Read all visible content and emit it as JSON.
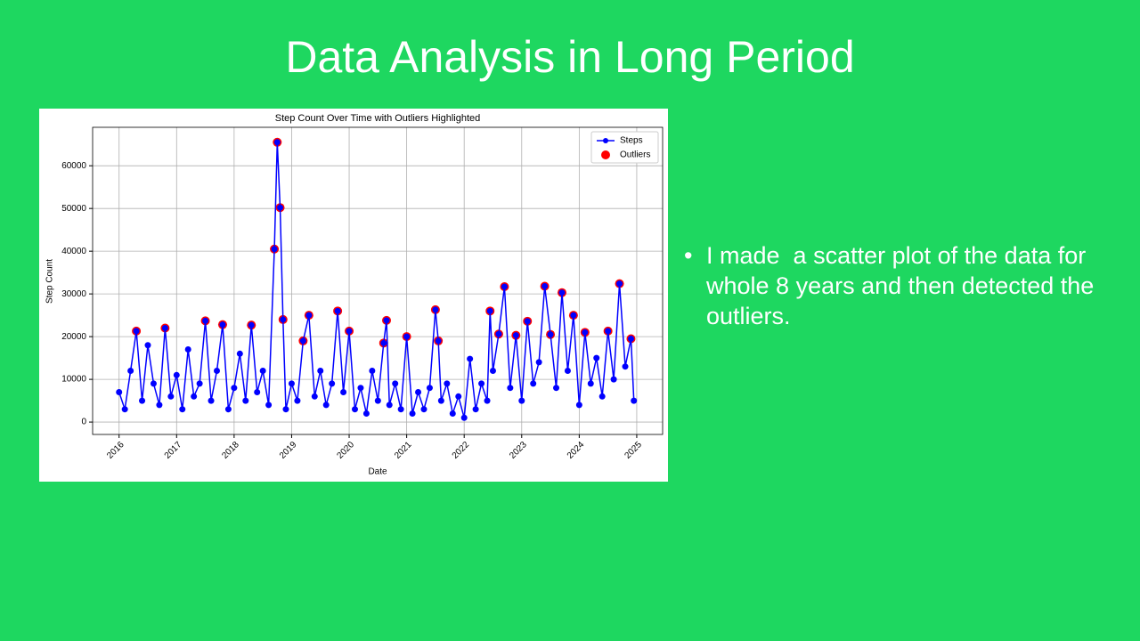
{
  "slide": {
    "title": "Data Analysis in Long Period",
    "bullets": [
      "I made  a scatter plot of the data for whole 8 years and then detected the outliers."
    ]
  },
  "chart_data": {
    "type": "line",
    "title": "Step Count Over Time with Outliers Highlighted",
    "x_label": "Date",
    "y_label": "Step Count",
    "xlim": [
      2015.54,
      2025.45
    ],
    "xticks": [
      2016,
      2017,
      2018,
      2019,
      2020,
      2021,
      2022,
      2023,
      2024,
      2025
    ],
    "ylim": [
      -2900,
      69000
    ],
    "yticks": [
      0,
      10000,
      20000,
      30000,
      40000,
      50000,
      60000
    ],
    "grid": true,
    "legend": "upper right",
    "series": [
      {
        "name": "Steps",
        "color": "#0000ff",
        "mode": "line-markers",
        "x": [
          2016.0,
          2016.1,
          2016.2,
          2016.3,
          2016.4,
          2016.5,
          2016.6,
          2016.7,
          2016.8,
          2016.9,
          2017.0,
          2017.1,
          2017.2,
          2017.3,
          2017.4,
          2017.5,
          2017.6,
          2017.7,
          2017.8,
          2017.9,
          2018.0,
          2018.1,
          2018.2,
          2018.3,
          2018.4,
          2018.5,
          2018.6,
          2018.7,
          2018.75,
          2018.8,
          2018.85,
          2018.9,
          2019.0,
          2019.1,
          2019.2,
          2019.3,
          2019.4,
          2019.5,
          2019.6,
          2019.7,
          2019.8,
          2019.9,
          2020.0,
          2020.1,
          2020.2,
          2020.3,
          2020.4,
          2020.5,
          2020.6,
          2020.65,
          2020.7,
          2020.8,
          2020.9,
          2021.0,
          2021.1,
          2021.2,
          2021.3,
          2021.4,
          2021.5,
          2021.55,
          2021.6,
          2021.7,
          2021.8,
          2021.9,
          2022.0,
          2022.1,
          2022.2,
          2022.3,
          2022.4,
          2022.45,
          2022.5,
          2022.6,
          2022.7,
          2022.8,
          2022.9,
          2023.0,
          2023.1,
          2023.2,
          2023.3,
          2023.4,
          2023.5,
          2023.6,
          2023.7,
          2023.8,
          2023.9,
          2024.0,
          2024.1,
          2024.2,
          2024.3,
          2024.4,
          2024.5,
          2024.6,
          2024.7,
          2024.8,
          2024.9,
          2024.95
        ],
        "values": [
          7000,
          3000,
          12000,
          21300,
          5000,
          18000,
          9000,
          4000,
          22000,
          6000,
          11000,
          3000,
          17000,
          6000,
          9000,
          23700,
          5000,
          12000,
          22800,
          3000,
          8000,
          16000,
          5000,
          22700,
          7000,
          12000,
          4000,
          40500,
          65500,
          50200,
          24000,
          3000,
          9000,
          5000,
          19000,
          25000,
          6000,
          12000,
          4000,
          9000,
          26000,
          7000,
          21300,
          3000,
          8000,
          2000,
          12000,
          5000,
          18500,
          23800,
          4000,
          9000,
          3000,
          20000,
          2000,
          7000,
          3000,
          8000,
          26300,
          19000,
          5000,
          9000,
          2000,
          6000,
          1000,
          14800,
          3000,
          9000,
          5000,
          26000,
          12000,
          20600,
          31700,
          8000,
          20300,
          5000,
          23600,
          9000,
          14000,
          31800,
          20500,
          8000,
          30300,
          12000,
          25000,
          4000,
          21000,
          9000,
          15000,
          6000,
          21300,
          10000,
          32400,
          13000,
          19500,
          5000
        ]
      },
      {
        "name": "Outliers",
        "color": "#ff0000",
        "mode": "markers",
        "x": [
          2016.3,
          2016.8,
          2017.5,
          2017.8,
          2018.3,
          2018.7,
          2018.75,
          2018.8,
          2018.85,
          2019.2,
          2019.3,
          2019.8,
          2020.0,
          2020.6,
          2020.65,
          2021.0,
          2021.5,
          2021.55,
          2022.45,
          2022.6,
          2022.7,
          2022.9,
          2023.1,
          2023.4,
          2023.5,
          2023.7,
          2023.9,
          2024.1,
          2024.5,
          2024.7,
          2024.9
        ],
        "values": [
          21300,
          22000,
          23700,
          22800,
          22700,
          40500,
          65500,
          50200,
          24000,
          19000,
          25000,
          26000,
          21300,
          18500,
          23800,
          20000,
          26300,
          19000,
          26000,
          20600,
          31700,
          20300,
          23600,
          31800,
          20500,
          30300,
          25000,
          21000,
          21300,
          32400,
          19500
        ]
      }
    ]
  }
}
